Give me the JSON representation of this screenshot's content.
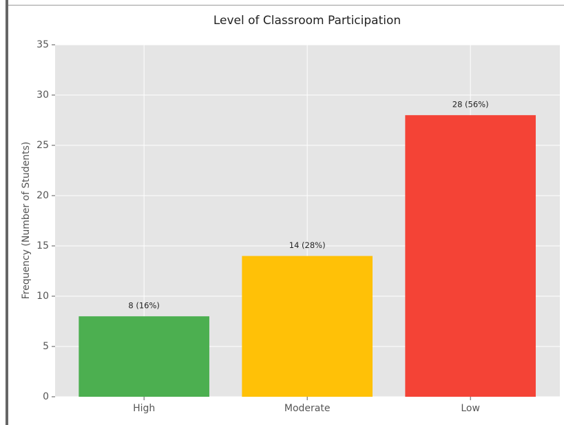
{
  "chart_data": {
    "type": "bar",
    "title": "Level of Classroom Participation",
    "ylabel": "Frequency (Number of Students)",
    "categories": [
      "High",
      "Moderate",
      "Low"
    ],
    "values": [
      8,
      14,
      28
    ],
    "value_labels": [
      "8 (16%)",
      "14 (28%)",
      "28 (56%)"
    ],
    "colors": [
      "#4caf50",
      "#ffc107",
      "#f44336"
    ],
    "ylim": [
      0,
      35
    ],
    "yticks": [
      0,
      5,
      10,
      15,
      20,
      25,
      30,
      35
    ],
    "grid": true
  }
}
